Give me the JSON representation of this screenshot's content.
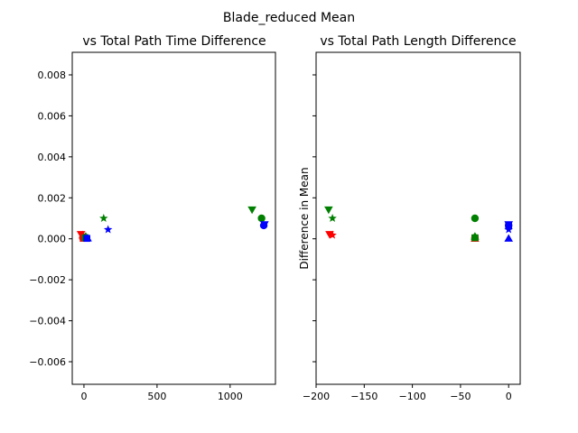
{
  "figure": {
    "suptitle": "Blade_reduced Mean"
  },
  "chart_data": [
    {
      "type": "scatter",
      "title": "vs Total Path Time Difference",
      "xlabel": "",
      "ylabel": "",
      "xlim": [
        -80,
        1310
      ],
      "ylim": [
        -0.0071,
        0.0091
      ],
      "x_ticks": [
        0,
        500,
        1000
      ],
      "x_tick_labels": [
        "0",
        "500",
        "1000"
      ],
      "y_ticks": [
        -0.006,
        -0.004,
        -0.002,
        0.0,
        0.002,
        0.004,
        0.006,
        0.008
      ],
      "y_tick_labels": [
        "−0.006",
        "−0.004",
        "−0.002",
        "0.000",
        "0.002",
        "0.004",
        "0.006",
        "0.008"
      ],
      "grid": false,
      "legend": "none",
      "series": [
        {
          "color": "#ff0000",
          "marker": "triangle-down",
          "points": [
            [
              -20,
              0.00022
            ]
          ]
        },
        {
          "color": "#ff0000",
          "marker": "star",
          "points": [
            [
              -10,
              0.00018
            ]
          ]
        },
        {
          "color": "#ff0000",
          "marker": "circle",
          "points": [
            [
              -8,
              5e-05
            ]
          ]
        },
        {
          "color": "#ff0000",
          "marker": "square",
          "points": [
            [
              -5,
              3e-05
            ]
          ]
        },
        {
          "color": "#ff0000",
          "marker": "triangle-up",
          "points": [
            [
              0,
              2e-05
            ]
          ]
        },
        {
          "color": "#008000",
          "marker": "triangle-down",
          "points": [
            [
              1150,
              0.00142
            ]
          ]
        },
        {
          "color": "#008000",
          "marker": "star",
          "points": [
            [
              135,
              0.001
            ]
          ]
        },
        {
          "color": "#008000",
          "marker": "circle",
          "points": [
            [
              1215,
              0.001
            ]
          ]
        },
        {
          "color": "#008000",
          "marker": "square",
          "points": [
            [
              8,
              5e-05
            ]
          ]
        },
        {
          "color": "#008000",
          "marker": "triangle-up",
          "points": [
            [
              12,
              0.00012
            ]
          ]
        },
        {
          "color": "#0000ff",
          "marker": "triangle-down",
          "points": [
            [
              1235,
              0.0007
            ]
          ]
        },
        {
          "color": "#0000ff",
          "marker": "star",
          "points": [
            [
              165,
              0.00045
            ]
          ]
        },
        {
          "color": "#0000ff",
          "marker": "circle",
          "points": [
            [
              1230,
              0.00065
            ]
          ]
        },
        {
          "color": "#0000ff",
          "marker": "square",
          "points": [
            [
              20,
              2e-05
            ]
          ]
        },
        {
          "color": "#0000ff",
          "marker": "triangle-up",
          "points": [
            [
              25,
              3e-05
            ]
          ]
        }
      ]
    },
    {
      "type": "scatter",
      "title": "vs Total Path Length Difference",
      "xlabel": "",
      "ylabel": "Difference in Mean",
      "xlim": [
        -200,
        12
      ],
      "ylim": [
        -0.0071,
        0.0091
      ],
      "x_ticks": [
        -200,
        -150,
        -100,
        -50,
        0
      ],
      "x_tick_labels": [
        "−200",
        "−150",
        "−100",
        "−50",
        "0"
      ],
      "y_ticks": [
        -0.006,
        -0.004,
        -0.002,
        0.0,
        0.002,
        0.004,
        0.006,
        0.008
      ],
      "y_tick_labels": [],
      "grid": false,
      "legend": "none",
      "series": [
        {
          "color": "#ff0000",
          "marker": "triangle-down",
          "points": [
            [
              -186,
              0.00022
            ]
          ]
        },
        {
          "color": "#ff0000",
          "marker": "star",
          "points": [
            [
              -183,
              0.00018
            ]
          ]
        },
        {
          "color": "#ff0000",
          "marker": "circle",
          "points": [
            [
              -35,
              5e-05
            ]
          ]
        },
        {
          "color": "#ff0000",
          "marker": "square",
          "points": [
            [
              -35,
              3e-05
            ]
          ]
        },
        {
          "color": "#ff0000",
          "marker": "triangle-up",
          "points": [
            [
              -35,
              2e-05
            ]
          ]
        },
        {
          "color": "#008000",
          "marker": "triangle-down",
          "points": [
            [
              -187,
              0.00142
            ]
          ]
        },
        {
          "color": "#008000",
          "marker": "star",
          "points": [
            [
              -183,
              0.001
            ]
          ]
        },
        {
          "color": "#008000",
          "marker": "circle",
          "points": [
            [
              -35,
              0.001
            ]
          ]
        },
        {
          "color": "#008000",
          "marker": "square",
          "points": [
            [
              -35,
              5e-05
            ]
          ]
        },
        {
          "color": "#008000",
          "marker": "triangle-up",
          "points": [
            [
              -35,
              0.00012
            ]
          ]
        },
        {
          "color": "#0000ff",
          "marker": "triangle-down",
          "points": [
            [
              0,
              0.0007
            ]
          ]
        },
        {
          "color": "#0000ff",
          "marker": "star",
          "points": [
            [
              0,
              0.00045
            ]
          ]
        },
        {
          "color": "#0000ff",
          "marker": "circle",
          "points": [
            [
              0,
              0.00065
            ]
          ]
        },
        {
          "color": "#0000ff",
          "marker": "square",
          "points": [
            [
              0,
              0.00062
            ]
          ]
        },
        {
          "color": "#0000ff",
          "marker": "triangle-up",
          "points": [
            [
              0,
              2e-05
            ]
          ]
        }
      ]
    }
  ]
}
